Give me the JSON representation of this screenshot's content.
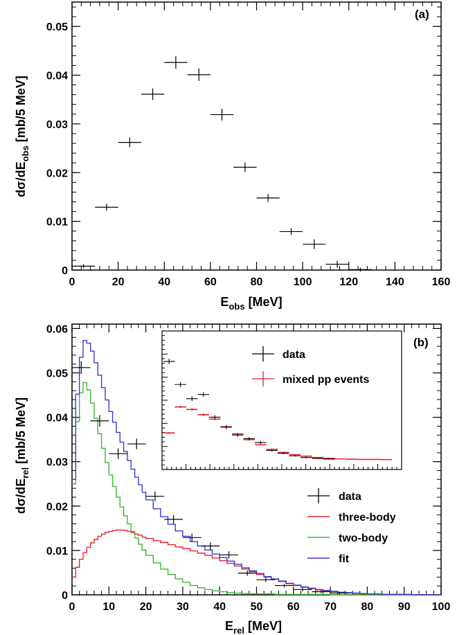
{
  "chart_data": [
    {
      "panel": "(a)",
      "type": "scatter",
      "title": "",
      "xlabel": {
        "main": "E",
        "sub": "obs",
        "unit": " [MeV]"
      },
      "ylabel": {
        "main": "dσ/dE",
        "sub": "obs",
        "unit": " [mb/5 MeV]"
      },
      "xlim": [
        0,
        160
      ],
      "ylim": [
        0,
        0.055
      ],
      "xticks": [
        "0",
        "20",
        "40",
        "60",
        "80",
        "100",
        "120",
        "140",
        "160"
      ],
      "yticks": [
        "0",
        "0.01",
        "0.02",
        "0.03",
        "0.04",
        "0.05"
      ],
      "grid": false,
      "series": [
        {
          "style": "errorbar",
          "color": "#000000",
          "x": [
            5,
            15,
            25,
            35,
            45,
            55,
            65,
            75,
            85,
            95,
            105,
            115,
            125
          ],
          "xerr": 5,
          "y": [
            0.0008,
            0.0129,
            0.0262,
            0.0361,
            0.0426,
            0.0401,
            0.0319,
            0.0211,
            0.0148,
            0.0079,
            0.0053,
            0.0012,
            0.0001
          ],
          "yerr": [
            0.0004,
            0.0007,
            0.001,
            0.0012,
            0.0013,
            0.0013,
            0.0012,
            0.001,
            0.0008,
            0.0007,
            0.001,
            0.0007,
            0.0004
          ]
        }
      ]
    },
    {
      "panel": "(b)",
      "type": "line",
      "title": "",
      "xlabel": {
        "main": "E",
        "sub": "rel",
        "unit": " [MeV]"
      },
      "ylabel": {
        "main": "dσ/dE",
        "sub": "rel",
        "unit": " [mb/5 MeV]"
      },
      "xlim": [
        0,
        100
      ],
      "ylim": [
        0,
        0.061
      ],
      "xticks": [
        "0",
        "10",
        "20",
        "30",
        "40",
        "50",
        "60",
        "70",
        "80",
        "90",
        "100"
      ],
      "yticks": [
        "0",
        "0.01",
        "0.02",
        "0.03",
        "0.04",
        "0.05",
        "0.06"
      ],
      "grid": false,
      "legend": {
        "placement": "center-right",
        "entries": [
          {
            "label": "data",
            "style": "errorbar",
            "color": "#000000"
          },
          {
            "label": "three-body",
            "style": "line",
            "color": "#e8232a"
          },
          {
            "label": "two-body",
            "style": "line",
            "color": "#3eb535"
          },
          {
            "label": "fit",
            "style": "line",
            "color": "#3a3ad6"
          }
        ]
      },
      "series": [
        {
          "name": "data",
          "style": "errorbar",
          "color": "#000000",
          "x": [
            2.5,
            7.5,
            12.5,
            17.5,
            22.5,
            27.5,
            32.5,
            37.5,
            42.5,
            47.5,
            52.5,
            57.5,
            62.5,
            67.5,
            72.5
          ],
          "xerr": 2.5,
          "y": [
            0.0512,
            0.0392,
            0.0318,
            0.034,
            0.0222,
            0.017,
            0.0129,
            0.011,
            0.009,
            0.0049,
            0.0034,
            0.0021,
            0.0012,
            0.0007,
            0.0004
          ],
          "yerr": [
            0.0014,
            0.0013,
            0.0012,
            0.0012,
            0.0011,
            0.001,
            0.0009,
            0.0008,
            0.0008,
            0.0006,
            0.0005,
            0.0004,
            0.0004,
            0.0003,
            0.0003
          ]
        },
        {
          "name": "three-body",
          "style": "step",
          "color": "#e8232a",
          "x": [
            0,
            1,
            2,
            3,
            4,
            5,
            6,
            7,
            8,
            9,
            10,
            11,
            12,
            13,
            14,
            15,
            16,
            17,
            18,
            19,
            20,
            22,
            24,
            26,
            28,
            30,
            32,
            34,
            36,
            38,
            40,
            42,
            44,
            46,
            48,
            50,
            52,
            54,
            56,
            58,
            60,
            62,
            64,
            66,
            68,
            70,
            72,
            74,
            76,
            78,
            80,
            84,
            88,
            92,
            96,
            100
          ],
          "y": [
            0.004,
            0.0062,
            0.008,
            0.0095,
            0.0107,
            0.0117,
            0.0125,
            0.0132,
            0.0137,
            0.0141,
            0.0143,
            0.0145,
            0.0146,
            0.0146,
            0.0145,
            0.0143,
            0.014,
            0.0137,
            0.0134,
            0.013,
            0.0127,
            0.0122,
            0.0118,
            0.0113,
            0.0108,
            0.0104,
            0.0099,
            0.0094,
            0.0089,
            0.0083,
            0.0077,
            0.0071,
            0.0065,
            0.0058,
            0.0052,
            0.0046,
            0.004,
            0.0035,
            0.003,
            0.0025,
            0.0021,
            0.0017,
            0.0014,
            0.0011,
            0.0009,
            0.0007,
            0.0006,
            0.0004,
            0.0003,
            0.0002,
            0.0002,
            0.0001,
            0.0001,
            0.0,
            0.0,
            0.0
          ]
        },
        {
          "name": "two-body",
          "style": "step",
          "color": "#3eb535",
          "x": [
            0,
            1,
            2,
            3,
            4,
            5,
            6,
            7,
            8,
            9,
            10,
            11,
            12,
            13,
            14,
            15,
            16,
            17,
            18,
            19,
            20,
            22,
            24,
            26,
            28,
            30,
            32,
            34,
            36,
            38,
            40,
            42,
            44,
            46,
            48,
            50,
            55,
            60,
            70,
            80,
            100
          ],
          "y": [
            0.025,
            0.039,
            0.0455,
            0.0478,
            0.0462,
            0.0432,
            0.0398,
            0.0363,
            0.033,
            0.0298,
            0.027,
            0.0244,
            0.022,
            0.0198,
            0.0178,
            0.016,
            0.0143,
            0.0128,
            0.0114,
            0.0101,
            0.0089,
            0.0072,
            0.0058,
            0.0046,
            0.0036,
            0.0028,
            0.0021,
            0.0016,
            0.0012,
            0.0009,
            0.0007,
            0.0005,
            0.0004,
            0.0003,
            0.0002,
            0.0002,
            0.0001,
            0.0001,
            0.0,
            0.0,
            0.0
          ]
        },
        {
          "name": "fit",
          "style": "step",
          "color": "#3a3ad6",
          "x": [
            0,
            1,
            2,
            3,
            4,
            5,
            6,
            7,
            8,
            9,
            10,
            11,
            12,
            13,
            14,
            15,
            16,
            17,
            18,
            19,
            20,
            22,
            24,
            26,
            28,
            30,
            32,
            34,
            36,
            38,
            40,
            42,
            44,
            46,
            48,
            50,
            52,
            54,
            56,
            58,
            60,
            62,
            64,
            66,
            68,
            70,
            72,
            74,
            76,
            78,
            80,
            84,
            88,
            92,
            96,
            100
          ],
          "y": [
            0.026,
            0.0452,
            0.0535,
            0.0573,
            0.0567,
            0.0549,
            0.0523,
            0.0495,
            0.0467,
            0.0439,
            0.0413,
            0.0389,
            0.0366,
            0.0344,
            0.0323,
            0.0303,
            0.0283,
            0.0265,
            0.0248,
            0.0231,
            0.0214,
            0.0194,
            0.0176,
            0.0159,
            0.0144,
            0.0132,
            0.012,
            0.011,
            0.0101,
            0.0092,
            0.0084,
            0.0076,
            0.0069,
            0.0061,
            0.0054,
            0.0048,
            0.0041,
            0.0036,
            0.0031,
            0.0026,
            0.0022,
            0.0018,
            0.0015,
            0.0012,
            0.001,
            0.0008,
            0.0006,
            0.0005,
            0.0004,
            0.0003,
            0.0002,
            0.0001,
            0.0001,
            0.0,
            0.0,
            0.0
          ]
        }
      ]
    },
    {
      "panel": "(b) inset",
      "type": "scatter",
      "title": "",
      "xlabel": "",
      "ylabel": "",
      "xlim": [
        0,
        100
      ],
      "ylim": [
        0,
        0.062
      ],
      "xticks": [],
      "yticks": [],
      "grid": false,
      "legend": {
        "placement": "top-right",
        "entries": [
          {
            "label": "data",
            "style": "errorbar",
            "color": "#000000"
          },
          {
            "label": "mixed pp events",
            "style": "errorbar",
            "color": "#e8232a"
          }
        ]
      },
      "series": [
        {
          "name": "data",
          "style": "errorbar",
          "color": "#000000",
          "x": [
            2.5,
            7.5,
            12.5,
            17.5,
            22.5,
            27.5,
            32.5,
            37.5,
            42.5,
            47.5,
            52.5,
            57.5,
            62.5,
            67.5,
            72.5
          ],
          "xerr": 2.5,
          "y": [
            0.0512,
            0.0392,
            0.0318,
            0.034,
            0.0222,
            0.017,
            0.0129,
            0.011,
            0.009,
            0.0049,
            0.0034,
            0.0021,
            0.0012,
            0.0007,
            0.0004
          ],
          "yerr": [
            0.0014,
            0.0013,
            0.0012,
            0.0012,
            0.0011,
            0.001,
            0.0009,
            0.0008,
            0.0008,
            0.0006,
            0.0005,
            0.0004,
            0.0004,
            0.0003,
            0.0003
          ]
        },
        {
          "name": "mixed pp events",
          "style": "errorbar",
          "color": "#e8232a",
          "x": [
            2.5,
            7.5,
            12.5,
            17.5,
            22.5,
            27.5,
            32.5,
            37.5,
            42.5,
            47.5,
            52.5,
            57.5,
            62.5,
            67.5,
            72.5,
            77.5,
            82.5,
            87.5,
            92.5,
            97.5
          ],
          "xerr": 2.5,
          "y": [
            0.014,
            0.0275,
            0.0262,
            0.0235,
            0.0212,
            0.0172,
            0.0135,
            0.0105,
            0.0078,
            0.0055,
            0.0038,
            0.0027,
            0.0019,
            0.0012,
            0.0008,
            0.0005,
            0.0003,
            0.0002,
            0.0002,
            0.0001
          ],
          "yerr": [
            0.0005,
            0.0006,
            0.0006,
            0.0006,
            0.0005,
            0.0005,
            0.0004,
            0.0004,
            0.0003,
            0.0003,
            0.0003,
            0.0002,
            0.0002,
            0.0002,
            0.0002,
            0.0001,
            0.0001,
            0.0001,
            0.0001,
            0.0001
          ]
        }
      ]
    }
  ]
}
